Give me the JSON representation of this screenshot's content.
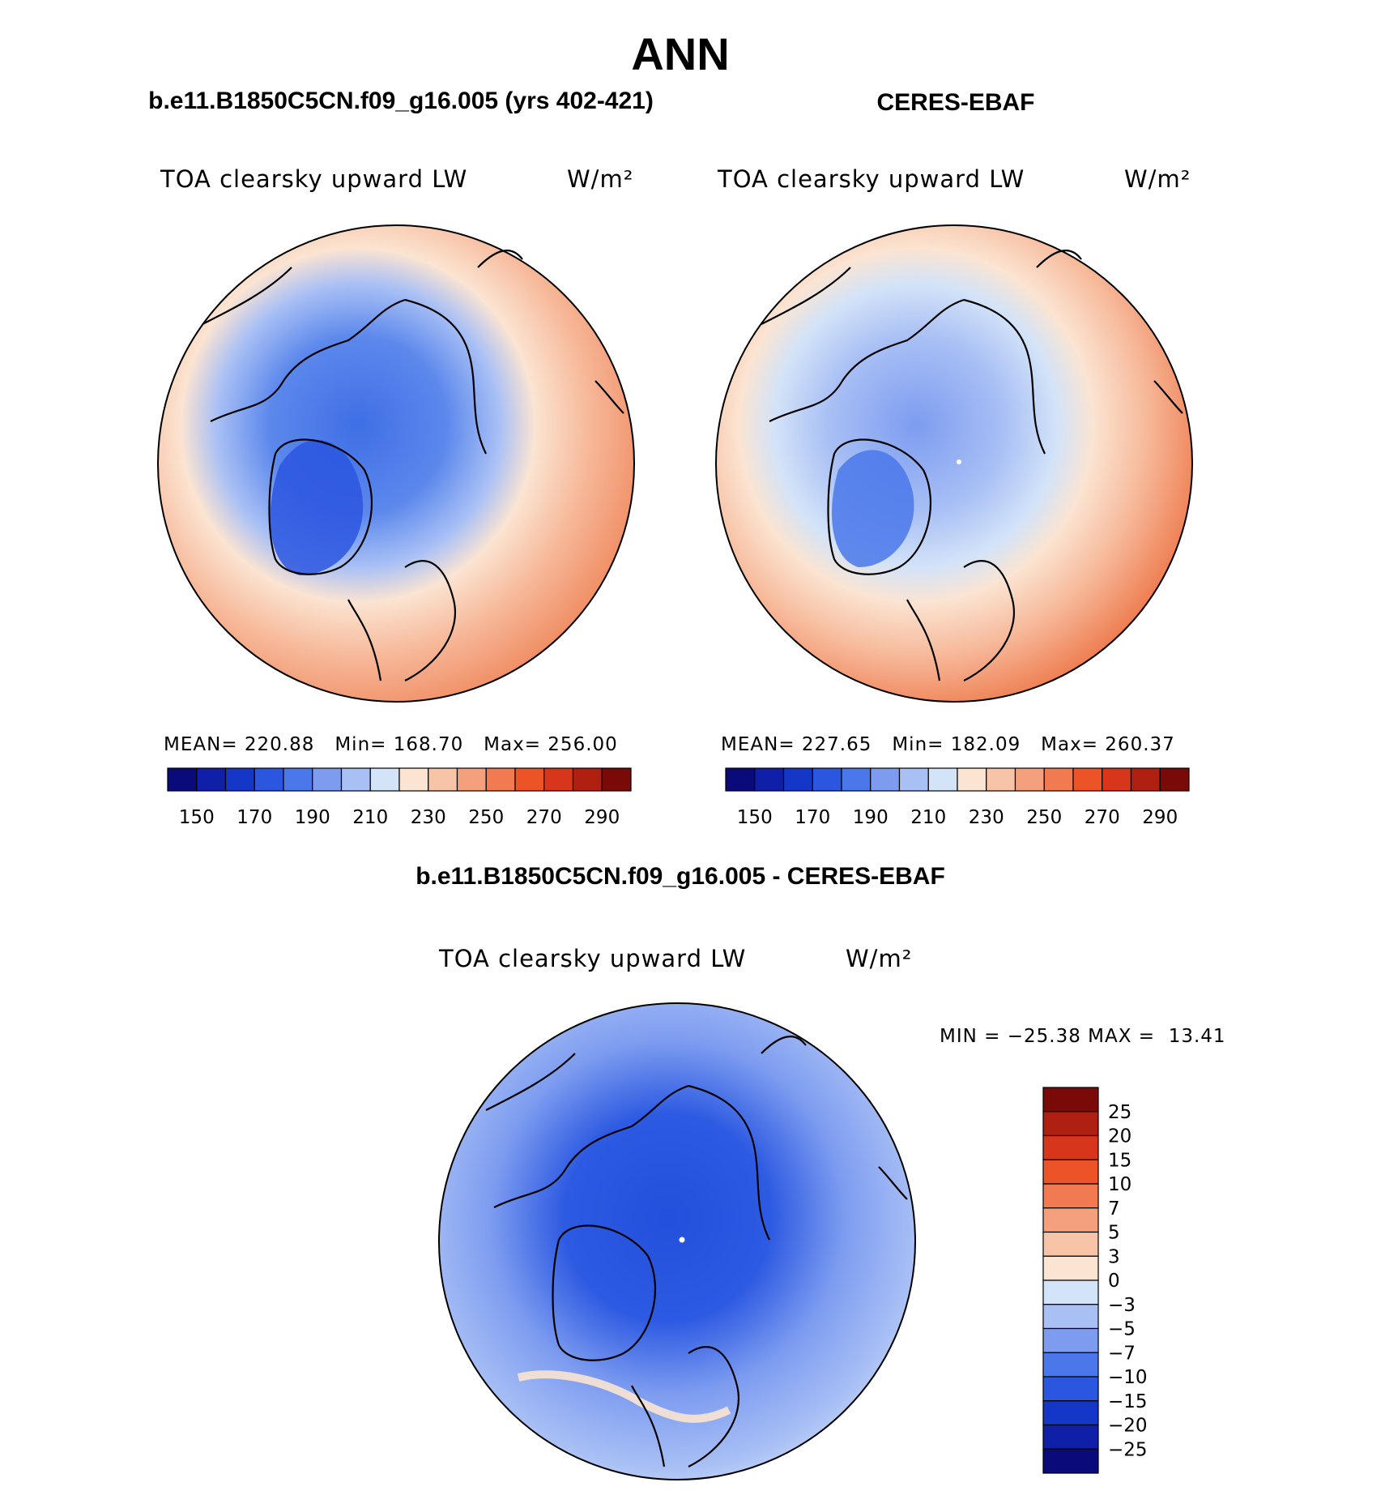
{
  "main_title": "ANN",
  "panels": [
    {
      "header": "b.e11.B1850C5CN.f09_g16.005 (yrs 402-421)",
      "var_label": "TOA clearsky upward LW",
      "units": "W/m²",
      "stats": {
        "mean_label": "MEAN=",
        "mean": "220.88",
        "min_label": "Min=",
        "min": "168.70",
        "max_label": "Max=",
        "max": "256.00"
      }
    },
    {
      "header": "CERES-EBAF",
      "var_label": "TOA clearsky upward LW",
      "units": "W/m²",
      "stats": {
        "mean_label": "MEAN=",
        "mean": "227.65",
        "min_label": "Min=",
        "min": "182.09",
        "max_label": "Max=",
        "max": "260.37"
      }
    }
  ],
  "diff": {
    "header": "b.e11.B1850C5CN.f09_g16.005 - CERES-EBAF",
    "var_label": "TOA clearsky upward LW",
    "units": "W/m²",
    "minmax": "MIN = −25.38 MAX =  13.41"
  },
  "colorbar_main": {
    "colors": [
      "#0a0a7a",
      "#0f1fa8",
      "#1537c8",
      "#2a56e0",
      "#4a78ea",
      "#7d9cf0",
      "#a9c0f5",
      "#d3e3f8",
      "#fbe4d2",
      "#f7c4a8",
      "#f4a07c",
      "#f17a50",
      "#ec5428",
      "#d8361a",
      "#b02010",
      "#7a0a08"
    ],
    "tick_labels": [
      "150",
      "170",
      "190",
      "210",
      "230",
      "250",
      "270",
      "290"
    ]
  },
  "colorbar_diff": {
    "colors": [
      "#0a0a7a",
      "#0f1fa8",
      "#1537c8",
      "#2a56e0",
      "#4a78ea",
      "#7d9cf0",
      "#a9c0f5",
      "#d3e3f8",
      "#fbe4d2",
      "#f7c4a8",
      "#f4a07c",
      "#f17a50",
      "#ec5428",
      "#d8361a",
      "#b02010",
      "#7a0a08"
    ],
    "tick_labels": [
      "25",
      "20",
      "15",
      "10",
      "7",
      "5",
      "3",
      "0",
      "−3",
      "−5",
      "−7",
      "−10",
      "−15",
      "−20",
      "−25"
    ]
  }
}
